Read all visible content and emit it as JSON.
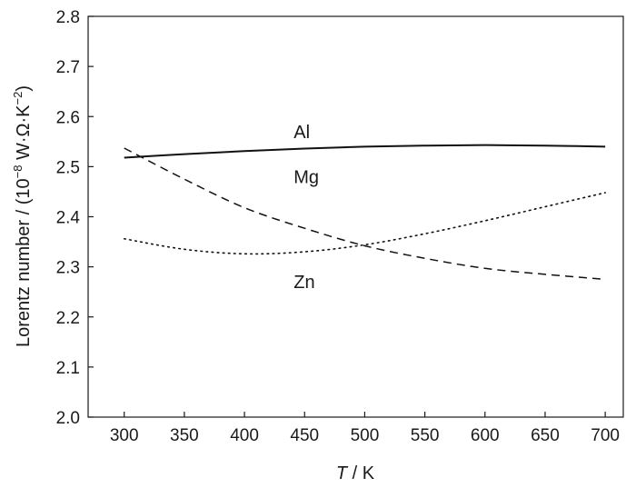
{
  "chart_data": {
    "type": "line",
    "xlabel": {
      "italic": "T",
      "rest": " / K"
    },
    "ylabel": {
      "main": "Lorentz number / (10",
      "exp1": "−8",
      "mid": " W·Ω·K",
      "exp2": "−2",
      "end": ")"
    },
    "xlim": [
      270,
      715
    ],
    "ylim": [
      2.0,
      2.8
    ],
    "xticks": [
      300,
      350,
      400,
      450,
      500,
      550,
      600,
      650,
      700
    ],
    "yticks": [
      "2.0",
      "2.1",
      "2.2",
      "2.3",
      "2.4",
      "2.5",
      "2.6",
      "2.7",
      "2.8"
    ],
    "grid": false,
    "series": [
      {
        "name": "Al",
        "style": "solid",
        "label_at": [
          450,
          2.57
        ],
        "x": [
          300,
          350,
          400,
          450,
          500,
          550,
          600,
          650,
          700
        ],
        "y": [
          2.518,
          2.525,
          2.531,
          2.536,
          2.54,
          2.542,
          2.543,
          2.542,
          2.54
        ]
      },
      {
        "name": "Mg",
        "style": "dashed",
        "label_at": [
          450,
          2.48
        ],
        "x": [
          300,
          350,
          400,
          450,
          500,
          550,
          600,
          650,
          700
        ],
        "y": [
          2.537,
          2.475,
          2.418,
          2.377,
          2.342,
          2.317,
          2.297,
          2.285,
          2.275
        ]
      },
      {
        "name": "Zn",
        "style": "dotted",
        "label_at": [
          450,
          2.27
        ],
        "x": [
          300,
          350,
          400,
          450,
          500,
          550,
          600,
          650,
          700
        ],
        "y": [
          2.356,
          2.335,
          2.326,
          2.33,
          2.344,
          2.366,
          2.392,
          2.42,
          2.448
        ]
      }
    ]
  }
}
